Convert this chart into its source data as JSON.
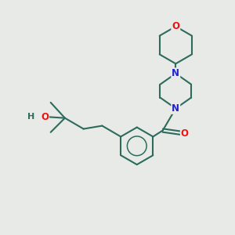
{
  "bg_color": "#e8eae8",
  "bond_color": "#2d6b5c",
  "bond_width": 1.5,
  "atom_O_color": "#ee1111",
  "atom_N_color": "#2222cc",
  "font_size": 8.5,
  "scale": 1.0,
  "figsize": [
    3.0,
    3.0
  ],
  "dpi": 100,
  "xlim": [
    -1.0,
    7.5
  ],
  "ylim": [
    -3.5,
    5.5
  ]
}
